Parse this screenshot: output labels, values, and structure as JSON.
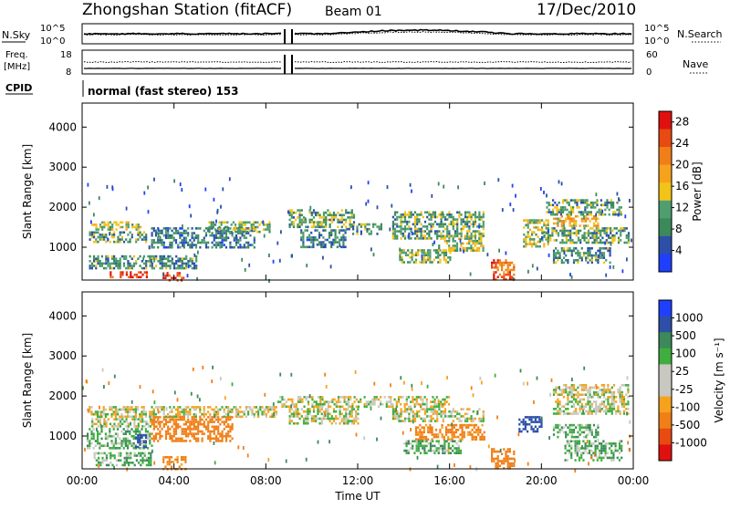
{
  "header": {
    "title": "Zhongshan Station (fitACF)",
    "beam": "Beam 01",
    "date": "17/Dec/2010"
  },
  "status_panels": {
    "nsky_label": "N.Sky",
    "nsky_ticks": [
      "10^5",
      "10^0"
    ],
    "nsearch_label": "N.Search",
    "nsearch_ticks": [
      "10^5",
      "10^0"
    ],
    "freq_label_line1": "Freq.",
    "freq_label_line2": "[MHz]",
    "freq_ticks": [
      "18",
      "8"
    ],
    "nave_label": "Nave",
    "nave_ticks": [
      "60",
      "0"
    ],
    "cpid_label": "CPID",
    "cpid_text": "normal (fast stereo) 153"
  },
  "colors": {
    "power_scale": [
      "#1f3fff",
      "#2d4fa8",
      "#3c8a5a",
      "#4e9e70",
      "#f2c318",
      "#f6a21c",
      "#f07f18",
      "#e84a12",
      "#e01010"
    ],
    "velocity_scale": [
      "#e01010",
      "#e84a12",
      "#f07f18",
      "#f6a21c",
      "#c8c8c0",
      "#c8c8c0",
      "#3fae3f",
      "#3c8a5a",
      "#2d4fa8",
      "#1f3fff"
    ],
    "axis": "#000000"
  },
  "chart_data": [
    {
      "type": "heatmap",
      "title": "",
      "ylabel": "Slant Range [km]",
      "xlabel": "Time UT",
      "xlim": [
        "00:00",
        "24:00"
      ],
      "ylim": [
        180,
        4600
      ],
      "x_ticks": [
        "00:00",
        "04:00",
        "08:00",
        "12:00",
        "16:00",
        "20:00",
        "00:00"
      ],
      "y_ticks": [
        1000,
        2000,
        3000,
        4000
      ],
      "colorbar": {
        "label": "Power [dB]",
        "ticks": [
          4,
          8,
          12,
          16,
          20,
          24,
          28
        ],
        "range": [
          0,
          30
        ]
      },
      "regions": [
        {
          "t0": 0.4,
          "t1": 2.5,
          "r0": 1450,
          "r1": 1650,
          "level": 0.45
        },
        {
          "t0": 0.3,
          "t1": 2.8,
          "r0": 1150,
          "r1": 1400,
          "level": 0.35
        },
        {
          "t0": 0.3,
          "t1": 5.0,
          "r0": 500,
          "r1": 800,
          "level": 0.3
        },
        {
          "t0": 1.2,
          "t1": 2.8,
          "r0": 250,
          "r1": 400,
          "level": 0.85
        },
        {
          "t0": 3.5,
          "t1": 4.4,
          "r0": 200,
          "r1": 380,
          "level": 0.9
        },
        {
          "t0": 3.0,
          "t1": 7.5,
          "r0": 1000,
          "r1": 1500,
          "level": 0.25
        },
        {
          "t0": 5.5,
          "t1": 8.2,
          "r0": 1400,
          "r1": 1650,
          "level": 0.4
        },
        {
          "t0": 9.0,
          "t1": 11.8,
          "r0": 1500,
          "r1": 1950,
          "level": 0.35
        },
        {
          "t0": 9.5,
          "t1": 11.5,
          "r0": 1000,
          "r1": 1450,
          "level": 0.25
        },
        {
          "t0": 11.5,
          "t1": 13.0,
          "r0": 1350,
          "r1": 1600,
          "level": 0.3
        },
        {
          "t0": 13.5,
          "t1": 17.5,
          "r0": 1200,
          "r1": 1900,
          "level": 0.35
        },
        {
          "t0": 13.8,
          "t1": 16.0,
          "r0": 600,
          "r1": 950,
          "level": 0.4
        },
        {
          "t0": 15.5,
          "t1": 17.5,
          "r0": 900,
          "r1": 1300,
          "level": 0.45
        },
        {
          "t0": 17.8,
          "t1": 18.8,
          "r0": 200,
          "r1": 700,
          "level": 0.8
        },
        {
          "t0": 19.2,
          "t1": 20.3,
          "r0": 1000,
          "r1": 1700,
          "level": 0.45
        },
        {
          "t0": 20.2,
          "t1": 23.5,
          "r0": 1800,
          "r1": 2200,
          "level": 0.35
        },
        {
          "t0": 20.5,
          "t1": 22.5,
          "r0": 1550,
          "r1": 1800,
          "level": 0.6
        },
        {
          "t0": 20.0,
          "t1": 23.8,
          "r0": 1100,
          "r1": 1500,
          "level": 0.35
        },
        {
          "t0": 20.5,
          "t1": 23.0,
          "r0": 600,
          "r1": 1000,
          "level": 0.3
        }
      ]
    },
    {
      "type": "heatmap",
      "title": "",
      "ylabel": "Slant Range [km]",
      "xlabel": "Time UT",
      "xlim": [
        "00:00",
        "24:00"
      ],
      "ylim": [
        180,
        4600
      ],
      "x_ticks": [
        "00:00",
        "04:00",
        "08:00",
        "12:00",
        "16:00",
        "20:00",
        "00:00"
      ],
      "y_ticks": [
        1000,
        2000,
        3000,
        4000
      ],
      "colorbar": {
        "label": "Velocity [m s⁻¹]",
        "ticks": [
          "1000",
          "500",
          "100",
          "25",
          "-25",
          "-100",
          "-500",
          "-1000"
        ]
      },
      "regions": [
        {
          "t0": 0.2,
          "t1": 8.5,
          "r0": 1500,
          "r1": 1750,
          "velocity": 0
        },
        {
          "t0": 0.4,
          "t1": 3.2,
          "r0": 1250,
          "r1": 1450,
          "velocity": 0
        },
        {
          "t0": 0.2,
          "t1": 3.0,
          "r0": 700,
          "r1": 1200,
          "velocity": 60
        },
        {
          "t0": 0.5,
          "t1": 3.0,
          "r0": 300,
          "r1": 600,
          "velocity": 70
        },
        {
          "t0": 2.3,
          "t1": 2.8,
          "r0": 700,
          "r1": 1050,
          "velocity": 600
        },
        {
          "t0": 3.0,
          "t1": 6.5,
          "r0": 900,
          "r1": 1500,
          "velocity": -200
        },
        {
          "t0": 3.5,
          "t1": 4.5,
          "r0": 200,
          "r1": 500,
          "velocity": -150
        },
        {
          "t0": 8.5,
          "t1": 16.0,
          "r0": 1750,
          "r1": 2000,
          "velocity": 0
        },
        {
          "t0": 9.0,
          "t1": 12.0,
          "r0": 1300,
          "r1": 1700,
          "velocity": 0
        },
        {
          "t0": 13.5,
          "t1": 17.5,
          "r0": 1350,
          "r1": 1700,
          "velocity": 0
        },
        {
          "t0": 14.5,
          "t1": 17.5,
          "r0": 900,
          "r1": 1300,
          "velocity": -150
        },
        {
          "t0": 14.0,
          "t1": 16.5,
          "r0": 600,
          "r1": 900,
          "velocity": 70
        },
        {
          "t0": 17.8,
          "t1": 18.8,
          "r0": 200,
          "r1": 700,
          "velocity": -300
        },
        {
          "t0": 19.0,
          "t1": 20.0,
          "r0": 1100,
          "r1": 1500,
          "velocity": 600
        },
        {
          "t0": 20.5,
          "t1": 22.5,
          "r0": 1000,
          "r1": 1300,
          "velocity": 70
        },
        {
          "t0": 20.5,
          "t1": 23.8,
          "r0": 1550,
          "r1": 2300,
          "velocity": 0
        },
        {
          "t0": 21.0,
          "t1": 23.5,
          "r0": 400,
          "r1": 900,
          "velocity": 70
        }
      ]
    }
  ],
  "axes": {
    "x_ticks": [
      "00:00",
      "04:00",
      "08:00",
      "12:00",
      "16:00",
      "20:00",
      "00:00"
    ],
    "xlabel": "Time UT"
  }
}
